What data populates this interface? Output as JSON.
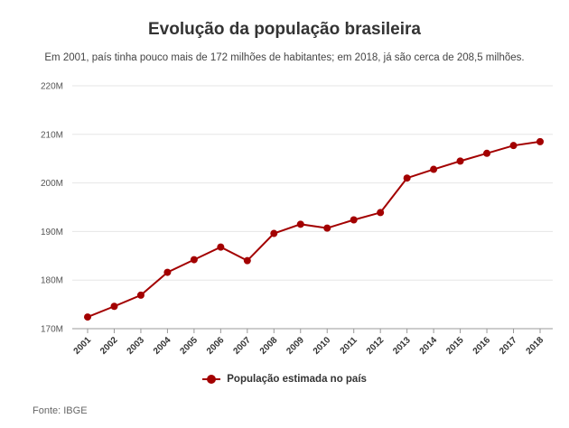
{
  "title": "Evolução da população brasileira",
  "subtitle": "Em 2001, país tinha pouco mais de 172 milhões de habitantes; em 2018, já são cerca de 208,5 milhões.",
  "source": "Fonte: IBGE",
  "colors": {
    "series": "#a30000",
    "grid": "#e6e6e6"
  },
  "chart_data": {
    "type": "line",
    "title": "Evolução da população brasileira",
    "subtitle": "Em 2001, país tinha pouco mais de 172 milhões de habitantes; em 2018, já são cerca de 208,5 milhões.",
    "x": [
      "2001",
      "2002",
      "2003",
      "2004",
      "2005",
      "2006",
      "2007",
      "2008",
      "2009",
      "2010",
      "2011",
      "2012",
      "2013",
      "2014",
      "2015",
      "2016",
      "2017",
      "2018"
    ],
    "series": [
      {
        "name": "População estimada no país",
        "values": [
          172.4,
          174.6,
          176.9,
          181.6,
          184.2,
          186.8,
          184.0,
          189.6,
          191.5,
          190.7,
          192.4,
          193.9,
          201.0,
          202.8,
          204.5,
          206.1,
          207.7,
          208.5
        ]
      }
    ],
    "ylim": [
      170,
      220
    ],
    "yticks": [
      170,
      180,
      190,
      200,
      210,
      220
    ],
    "ytick_labels": [
      "170M",
      "180M",
      "190M",
      "200M",
      "210M",
      "220M"
    ],
    "xlabel": "",
    "ylabel": "",
    "grid": true,
    "legend": "bottom-center"
  }
}
